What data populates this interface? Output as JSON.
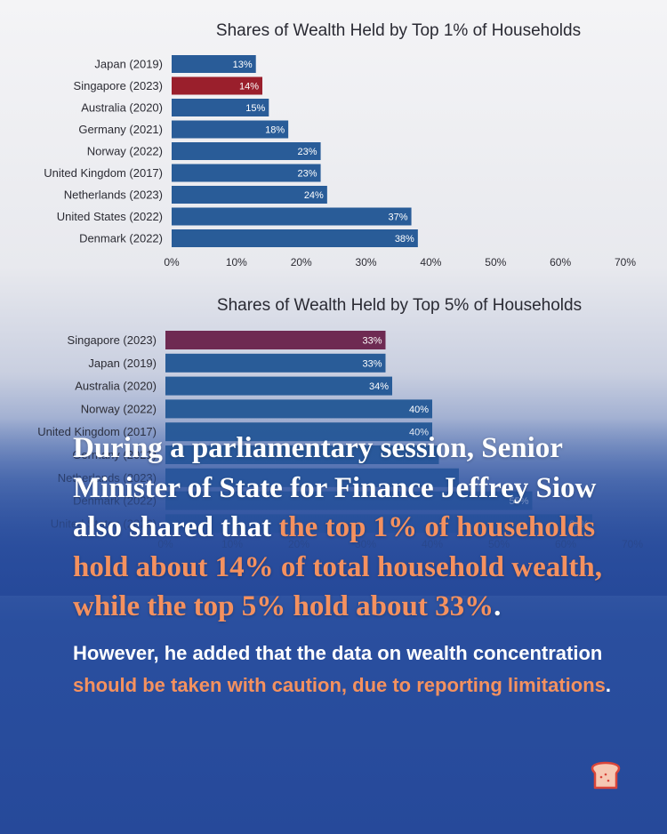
{
  "chart_data": [
    {
      "type": "bar",
      "orientation": "horizontal",
      "title": "Shares of Wealth Held by Top 1% of Households",
      "categories": [
        "Japan (2019)",
        "Singapore (2023)",
        "Australia (2020)",
        "Germany (2021)",
        "Norway (2022)",
        "United Kingdom (2017)",
        "Netherlands (2023)",
        "United States (2022)",
        "Denmark (2022)"
      ],
      "values": [
        13,
        14,
        15,
        18,
        23,
        23,
        24,
        37,
        38
      ],
      "data_labels": [
        "13%",
        "14%",
        "15%",
        "18%",
        "23%",
        "23%",
        "24%",
        "37%",
        "38%"
      ],
      "highlight": "Singapore (2023)",
      "xlim": [
        0,
        70
      ],
      "xticks": [
        "0%",
        "10%",
        "20%",
        "30%",
        "40%",
        "50%",
        "60%",
        "70%"
      ],
      "grid": false
    },
    {
      "type": "bar",
      "orientation": "horizontal",
      "title": "Shares of Wealth Held by Top 5% of Households",
      "categories": [
        "Singapore (2023)",
        "Japan (2019)",
        "Australia (2020)",
        "Norway (2022)",
        "United Kingdom (2017)",
        "Germany (2021)",
        "Netherlands (2023)",
        "Denmark (2022)",
        "United States (2022)"
      ],
      "values": [
        33,
        33,
        34,
        40,
        40,
        41,
        44,
        55,
        64
      ],
      "data_labels": [
        "33%",
        "33%",
        "34%",
        "40%",
        "40%",
        "",
        "",
        "55%",
        "64%"
      ],
      "highlight": "Singapore (2023)",
      "xlim": [
        0,
        70
      ],
      "xticks": [
        "0%",
        "10%",
        "20%",
        "30%",
        "40%",
        "50%",
        "60%",
        "70%"
      ],
      "grid": false
    }
  ],
  "colors": {
    "bar": "#295c98",
    "highlight_top1": "#9a1f2c",
    "highlight_top5": "#6e2a52",
    "accent_text": "#f4915f"
  },
  "text": {
    "headline_1": "During a parliamentary session, Senior Minister of State for Finance Jeffrey Siow also shared that ",
    "headline_2": "the top 1% of households hold about 14% of total household wealth, while the top 5% hold about 33%",
    "headline_3": ".",
    "sub_1": "However, he added that the data on wealth concentration ",
    "sub_2": "should be taken with caution, due to reporting limitations",
    "sub_3": "."
  },
  "logo": {
    "icon": "toast-icon"
  }
}
